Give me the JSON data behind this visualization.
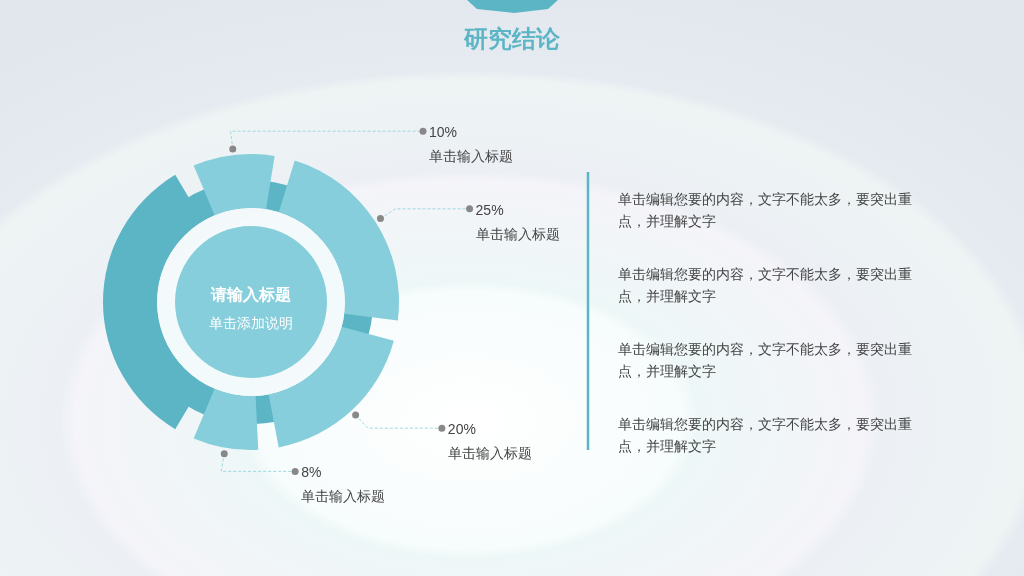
{
  "chart_data": {
    "type": "donut",
    "title": "研究结论",
    "categories": [
      "单击输入标题",
      "单击输入标题",
      "单击输入标题",
      "单击输入标题",
      null
    ],
    "values": [
      10,
      25,
      20,
      8,
      37
    ],
    "value_labels": [
      "10%",
      "25%",
      "20%",
      "8%",
      null
    ],
    "colors": [
      "#86cedb",
      "#86cedb",
      "#86cedb",
      "#86cedb",
      "#5bb5c5"
    ],
    "annotations": [
      "请输入标题",
      "单击添加说明",
      "单击编辑您要的内容，文字不能太多，要突出重点，并理解文字",
      "单击编辑您要的内容，文字不能太多，要突出重点，并理解文字",
      "单击编辑您要的内容，文字不能太多，要突出重点，并理解文字",
      "单击编辑您要的内容，文字不能太多，要突出重点，并理解文字"
    ]
  }
}
